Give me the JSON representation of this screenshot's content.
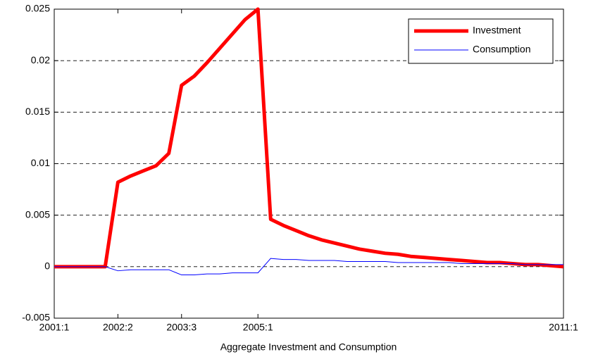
{
  "chart_data": {
    "type": "line",
    "x_label": "Aggregate Investment and Consumption",
    "categories": [
      "2001:1",
      null,
      null,
      null,
      null,
      "2002:2",
      null,
      null,
      null,
      null,
      "2003:3",
      null,
      null,
      null,
      null,
      null,
      "2005:1",
      null,
      null,
      null,
      null,
      null,
      null,
      null,
      null,
      null,
      null,
      null,
      null,
      null,
      null,
      null,
      null,
      null,
      null,
      null,
      null,
      null,
      null,
      null,
      "2011:1"
    ],
    "series": [
      {
        "name": "Investment",
        "color": "#ff0000",
        "values": [
          0,
          0,
          0,
          0,
          0,
          0.0082,
          0.0088,
          0.0093,
          0.0098,
          0.011,
          0.0176,
          0.0185,
          0.0198,
          0.0212,
          0.0226,
          0.024,
          0.025,
          0.0046,
          0.004,
          0.0035,
          0.003,
          0.0026,
          0.0023,
          0.002,
          0.0017,
          0.0015,
          0.0013,
          0.0012,
          0.001,
          0.0009,
          0.0008,
          0.0007,
          0.0006,
          0.0005,
          0.0004,
          0.0004,
          0.0003,
          0.0002,
          0.0002,
          0.0001,
          0
        ]
      },
      {
        "name": "Consumption",
        "color": "#0000ff",
        "values": [
          0,
          0,
          0,
          0,
          0,
          -0.0004,
          -0.0003,
          -0.0003,
          -0.0003,
          -0.0003,
          -0.0008,
          -0.0008,
          -0.0007,
          -0.0007,
          -0.0006,
          -0.0006,
          -0.0006,
          0.0008,
          0.0007,
          0.0007,
          0.0006,
          0.0006,
          0.0006,
          0.0005,
          0.0005,
          0.0005,
          0.0005,
          0.0004,
          0.0004,
          0.0004,
          0.0004,
          0.0004,
          0.0003,
          0.0003,
          0.0003,
          0.0003,
          0.0003,
          0.0002,
          0.0002,
          0.0002,
          0.0002
        ]
      }
    ],
    "ylim": [
      -0.005,
      0.025
    ],
    "yticks": [
      -0.005,
      0,
      0.005,
      0.01,
      0.015,
      0.02,
      0.025
    ],
    "grid": true,
    "legend": "top-right"
  }
}
